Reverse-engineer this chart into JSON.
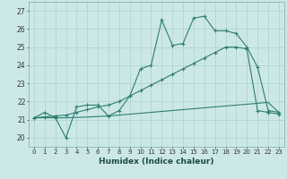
{
  "xlabel": "Humidex (Indice chaleur)",
  "xlim": [
    -0.5,
    23.5
  ],
  "ylim": [
    19.5,
    27.5
  ],
  "xticks": [
    0,
    1,
    2,
    3,
    4,
    5,
    6,
    7,
    8,
    9,
    10,
    11,
    12,
    13,
    14,
    15,
    16,
    17,
    18,
    19,
    20,
    21,
    22,
    23
  ],
  "yticks": [
    20,
    21,
    22,
    23,
    24,
    25,
    26,
    27
  ],
  "background_color": "#cce8e6",
  "grid_color": "#b0d4d2",
  "line_color": "#2e7d72",
  "line1_y": [
    21.1,
    21.4,
    21.1,
    20.0,
    21.7,
    21.8,
    21.8,
    21.2,
    21.5,
    22.3,
    23.8,
    24.0,
    26.5,
    25.1,
    25.2,
    26.6,
    26.7,
    25.9,
    25.9,
    25.75,
    25.0,
    23.9,
    21.5,
    21.4
  ],
  "line2_y": [
    21.1,
    21.15,
    21.2,
    21.25,
    21.4,
    21.55,
    21.7,
    21.8,
    22.0,
    22.3,
    22.6,
    22.9,
    23.2,
    23.5,
    23.8,
    24.1,
    24.4,
    24.7,
    25.0,
    25.0,
    24.9,
    21.5,
    21.4,
    21.3
  ],
  "line3_y": [
    21.1,
    21.1,
    21.1,
    21.1,
    21.12,
    21.14,
    21.17,
    21.2,
    21.25,
    21.3,
    21.35,
    21.4,
    21.45,
    21.5,
    21.55,
    21.6,
    21.65,
    21.7,
    21.75,
    21.8,
    21.85,
    21.9,
    21.95,
    21.4
  ]
}
